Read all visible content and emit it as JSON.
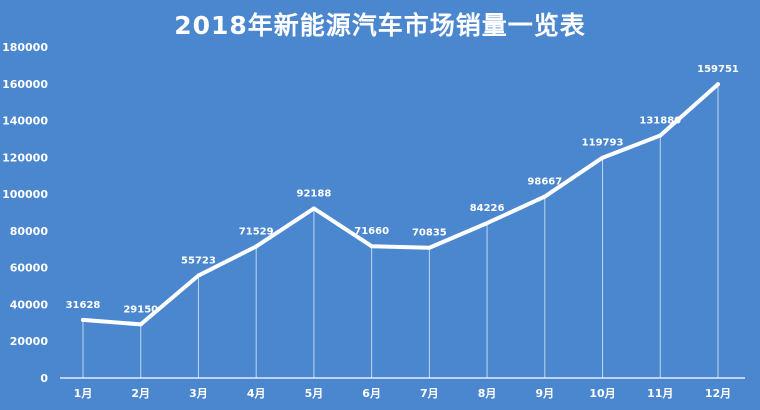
{
  "chart_data": {
    "type": "line",
    "title": "2018年新能源汽车市场销量一览表",
    "categories": [
      "1月",
      "2月",
      "3月",
      "4月",
      "5月",
      "6月",
      "7月",
      "8月",
      "9月",
      "10月",
      "11月",
      "12月"
    ],
    "series": [
      {
        "values": [
          31628,
          29150,
          55723,
          71529,
          92188,
          71660,
          70835,
          84226,
          98667,
          119793,
          131880,
          159751
        ]
      }
    ],
    "y_ticks": [
      "0",
      "20000",
      "40000",
      "60000",
      "80000",
      "100000",
      "120000",
      "140000",
      "160000",
      "180000"
    ],
    "ylim": [
      0,
      180000
    ],
    "grid": false,
    "legend": "none",
    "colors": {
      "background": "#4b87cf",
      "line": "#ffffff",
      "text": "#ffffff"
    }
  }
}
